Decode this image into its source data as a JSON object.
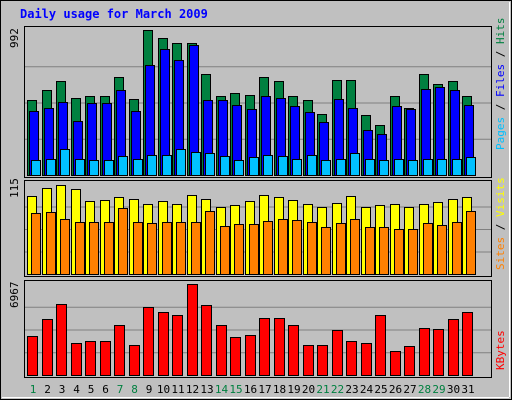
{
  "title": "Daily usage for March 2009",
  "colors": {
    "background": "#c0c0c0",
    "title": "#0000ff",
    "hits": "#008040",
    "files": "#0000ff",
    "pages": "#00c0ff",
    "visits": "#ffff00",
    "sites": "#ff8000",
    "kbytes": "#ff0000",
    "weekday_label": "#000000",
    "weekend_label": "#008040",
    "gridline": "#808080"
  },
  "chart_data": [
    {
      "type": "bar",
      "panel": "hits-files-pages",
      "ymax_label": "992",
      "ylim": [
        0,
        992
      ],
      "categories": [
        "1",
        "2",
        "3",
        "4",
        "5",
        "6",
        "7",
        "8",
        "9",
        "10",
        "11",
        "12",
        "13",
        "14",
        "15",
        "16",
        "17",
        "18",
        "19",
        "20",
        "21",
        "22",
        "23",
        "24",
        "25",
        "26",
        "27",
        "28",
        "29",
        "30",
        "31"
      ],
      "weekend_days": [
        "1",
        "7",
        "8",
        "14",
        "15",
        "21",
        "22",
        "28",
        "29"
      ],
      "vertical_label": [
        {
          "text": "Pages",
          "color_key": "pages"
        },
        {
          "text": " / ",
          "color_key": "weekday_label"
        },
        {
          "text": "Files",
          "color_key": "files"
        },
        {
          "text": " / ",
          "color_key": "weekday_label"
        },
        {
          "text": "Hits",
          "color_key": "hits"
        }
      ],
      "series": [
        {
          "name": "Hits",
          "color_key": "hits",
          "values": [
            510,
            580,
            640,
            530,
            540,
            540,
            670,
            520,
            1000,
            940,
            900,
            900,
            690,
            540,
            560,
            550,
            670,
            640,
            540,
            510,
            420,
            650,
            650,
            410,
            340,
            540,
            460,
            690,
            620,
            640,
            540
          ]
        },
        {
          "name": "Files",
          "color_key": "files",
          "values": [
            440,
            460,
            500,
            370,
            490,
            490,
            580,
            440,
            750,
            860,
            790,
            890,
            510,
            510,
            480,
            450,
            540,
            530,
            470,
            430,
            360,
            520,
            460,
            310,
            280,
            470,
            450,
            590,
            600,
            580,
            480
          ]
        },
        {
          "name": "Pages",
          "color_key": "pages",
          "values": [
            100,
            110,
            180,
            110,
            100,
            100,
            130,
            110,
            140,
            140,
            180,
            160,
            150,
            130,
            100,
            120,
            140,
            130,
            110,
            140,
            100,
            110,
            150,
            110,
            100,
            110,
            100,
            110,
            110,
            110,
            120
          ]
        }
      ]
    },
    {
      "type": "bar",
      "panel": "visits-sites",
      "ymax_label": "115",
      "ylim": [
        0,
        115
      ],
      "vertical_label": [
        {
          "text": "Sites",
          "color_key": "sites"
        },
        {
          "text": " / ",
          "color_key": "weekday_label"
        },
        {
          "text": "Visits",
          "color_key": "visits"
        }
      ],
      "series": [
        {
          "name": "Visits",
          "color_key": "visits",
          "values": [
            100,
            110,
            114,
            108,
            93,
            94,
            98,
            96,
            90,
            93,
            90,
            101,
            96,
            85,
            88,
            93,
            101,
            98,
            95,
            89,
            86,
            91,
            100,
            85,
            88,
            90,
            85,
            89,
            92,
            96,
            98
          ]
        },
        {
          "name": "Sites",
          "color_key": "sites",
          "values": [
            78,
            79,
            70,
            67,
            66,
            66,
            84,
            66,
            65,
            67,
            66,
            66,
            80,
            61,
            64,
            64,
            68,
            70,
            69,
            66,
            60,
            65,
            70,
            60,
            60,
            57,
            58,
            65,
            63,
            67,
            80
          ]
        }
      ]
    },
    {
      "type": "bar",
      "panel": "kbytes",
      "ymax_label": "6967",
      "ylim": [
        0,
        6967
      ],
      "vertical_label": [
        {
          "text": "KBytes",
          "color_key": "kbytes"
        }
      ],
      "series": [
        {
          "name": "KBytes",
          "color_key": "kbytes",
          "values": [
            2980,
            4280,
            5410,
            2440,
            2640,
            2640,
            3800,
            2280,
            5240,
            4850,
            4600,
            7000,
            5360,
            3860,
            2940,
            3100,
            4400,
            4360,
            3800,
            2260,
            2320,
            3480,
            2580,
            2460,
            4560,
            1860,
            2200,
            3600,
            3520,
            4300,
            4860
          ]
        }
      ]
    }
  ]
}
